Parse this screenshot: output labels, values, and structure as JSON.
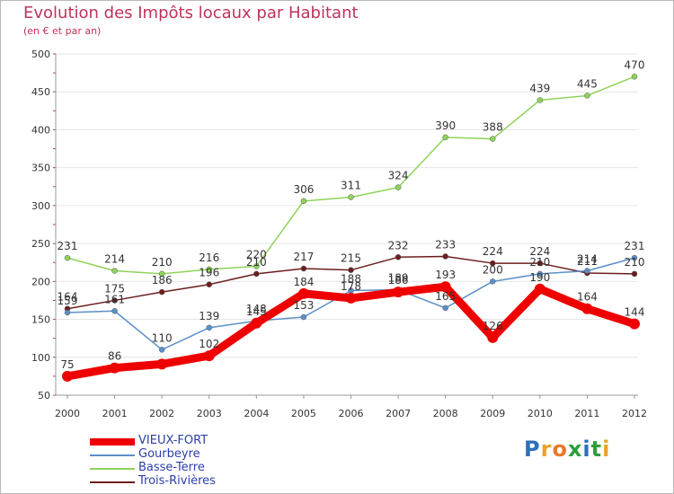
{
  "title": "Evolution des Impôts locaux par Habitant",
  "subtitle": "(en € et par an)",
  "logo": {
    "text": "Proxiti",
    "letters": [
      "P",
      "r",
      "o",
      "x",
      "i",
      "t",
      "i"
    ],
    "colors": [
      "#2f6fb8",
      "#e8a52a",
      "#e8792a",
      "#2f9e3a",
      "#2f6fb8",
      "#2f9e3a",
      "#e8a52a"
    ]
  },
  "chart_data": {
    "type": "line",
    "x": [
      2000,
      2001,
      2002,
      2003,
      2004,
      2005,
      2006,
      2007,
      2008,
      2009,
      2010,
      2011,
      2012
    ],
    "ylim": [
      50,
      500
    ],
    "yticks": [
      50,
      100,
      150,
      200,
      250,
      300,
      350,
      400,
      450,
      500
    ],
    "grid": "horizontal",
    "legend_position": "bottom-left",
    "series": [
      {
        "name": "VIEUX-FORT",
        "color": "#ee0000",
        "width": 9,
        "values": [
          75,
          86,
          91,
          102,
          145,
          184,
          178,
          186,
          193,
          126,
          190,
          164,
          144
        ],
        "labels": [
          "75",
          "86",
          "",
          "102",
          "145",
          "184",
          "178",
          "186",
          "193",
          "126",
          "190",
          "164",
          "144"
        ]
      },
      {
        "name": "Gourbeyre",
        "color": "#5b8fc9",
        "width": 1.5,
        "values": [
          159,
          161,
          110,
          139,
          148,
          153,
          188,
          189,
          165,
          200,
          210,
          214,
          231
        ],
        "labels": [
          "159",
          "161",
          "110",
          "139",
          "148",
          "153",
          "188",
          "189",
          "165",
          "200",
          "210",
          "214",
          "231"
        ]
      },
      {
        "name": "Basse-Terre",
        "color": "#8fd35a",
        "width": 1.5,
        "values": [
          231,
          214,
          210,
          216,
          220,
          306,
          311,
          324,
          390,
          388,
          439,
          445,
          470
        ],
        "labels": [
          "231",
          "214",
          "210",
          "216",
          "220",
          "306",
          "311",
          "324",
          "390",
          "388",
          "439",
          "445",
          "470"
        ]
      },
      {
        "name": "Trois-Rivières",
        "color": "#6b1e1e",
        "width": 1.5,
        "values": [
          164,
          175,
          186,
          196,
          210,
          217,
          215,
          232,
          233,
          224,
          224,
          211,
          210
        ],
        "labels": [
          "164",
          "175",
          "186",
          "196",
          "210",
          "217",
          "215",
          "232",
          "233",
          "224",
          "224",
          "211",
          "210"
        ]
      }
    ]
  }
}
